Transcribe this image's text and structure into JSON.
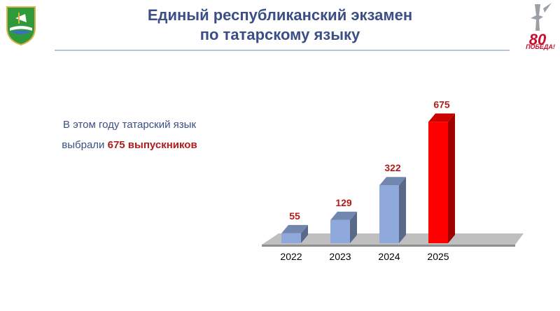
{
  "header": {
    "title_line1": "Единый республиканский экзамен",
    "title_line2": "по татарскому языку"
  },
  "logos": {
    "left": "city-emblem",
    "right": "victory-80-logo",
    "right_text_number": "80",
    "right_text_word": "ПОБЕДА!"
  },
  "caption": {
    "line1": "В этом году татарский язык",
    "line2_prefix": "выбрали ",
    "line2_highlight": "675 выпускников"
  },
  "colors": {
    "title": "#3b4f86",
    "highlight": "#b01c1c",
    "bar_blue": "#8fa9dc",
    "bar_red": "#ff0000",
    "floor": "#bfbfbf"
  },
  "chart_data": {
    "type": "bar",
    "categories": [
      "2022",
      "2023",
      "2024",
      "2025"
    ],
    "values": [
      55,
      129,
      322,
      675
    ],
    "highlight_index": 3,
    "title": "",
    "xlabel": "",
    "ylabel": "",
    "ylim": [
      0,
      700
    ],
    "grid": false,
    "legend": "none",
    "style": "3d-column"
  }
}
